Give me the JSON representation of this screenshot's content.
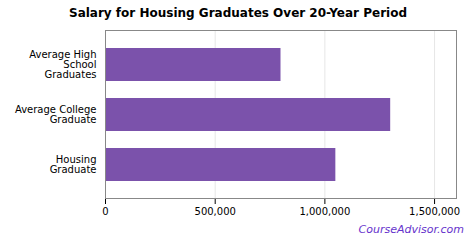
{
  "chart_data": {
    "type": "bar",
    "orientation": "horizontal",
    "title": "Salary for Housing Graduates Over 20-Year Period",
    "categories": [
      "Housing\nGraduate",
      "Average College\nGraduate",
      "Average High\nSchool\nGraduates"
    ],
    "values": [
      1050000,
      1300000,
      800000
    ],
    "color": "#7B52AB",
    "xlim": [
      0,
      1600000
    ],
    "xticks": [
      0,
      {
        "value": 500000,
        "label": "500,000"
      },
      {
        "value": 1000000,
        "label": "1,000,000"
      },
      {
        "value": 1500000,
        "label": "1,500,000"
      }
    ],
    "grid": true,
    "annotations": [
      {
        "text": "CourseAdvisor.com",
        "color": "#6633CC"
      }
    ]
  }
}
